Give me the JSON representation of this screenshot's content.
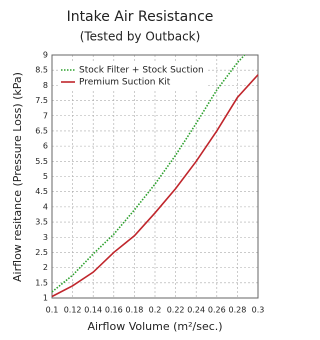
{
  "chart_data": {
    "type": "line",
    "title": "Intake Air Resistance",
    "subtitle": "(Tested by Outback)",
    "x_label": "Airflow Volume (m²/sec.)",
    "y_label": "Airflow resitance (Pressure Loss) (kPa)",
    "xlim": [
      0.1,
      0.3
    ],
    "xticks": [
      0.1,
      0.12,
      0.14,
      0.16,
      0.18,
      0.2,
      0.22,
      0.24,
      0.26,
      0.28,
      0.3
    ],
    "ylim": [
      1,
      9
    ],
    "yticks": [
      1,
      1.5,
      2,
      2.5,
      3,
      3.5,
      4,
      4.5,
      5,
      5.5,
      6,
      6.5,
      7,
      7.5,
      8,
      8.5,
      9
    ],
    "grid": true,
    "legend": "upper-left",
    "series": [
      {
        "name": "Stock Filter + Stock Suction",
        "color": "#2ca02c",
        "style": "dotted",
        "x": [
          0.1,
          0.12,
          0.14,
          0.16,
          0.18,
          0.2,
          0.22,
          0.24,
          0.26,
          0.28,
          0.287
        ],
        "values": [
          1.2,
          1.75,
          2.45,
          3.1,
          3.9,
          4.75,
          5.7,
          6.75,
          7.85,
          8.75,
          9
        ]
      },
      {
        "name": "Premium Suction Kit",
        "color": "#c0262c",
        "style": "solid",
        "x": [
          0.1,
          0.12,
          0.14,
          0.16,
          0.18,
          0.2,
          0.22,
          0.24,
          0.26,
          0.28,
          0.3
        ],
        "values": [
          1.05,
          1.4,
          1.85,
          2.5,
          3.05,
          3.8,
          4.6,
          5.5,
          6.5,
          7.6,
          8.35
        ]
      }
    ]
  }
}
